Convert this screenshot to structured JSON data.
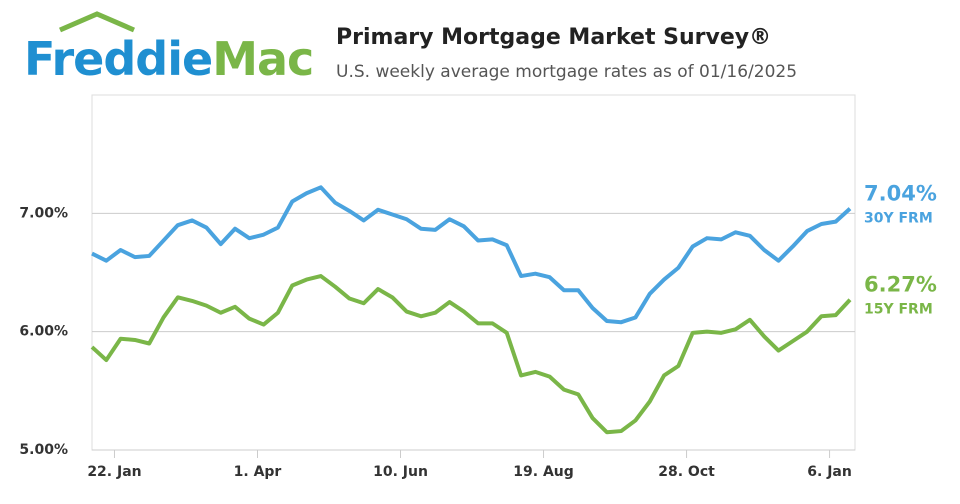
{
  "chart_data": {
    "type": "line",
    "brand": [
      "Freddie",
      "Mac"
    ],
    "title": "Primary Mortgage Market Survey®",
    "subtitle": "U.S. weekly average mortgage rates as of 01/16/2025",
    "categories": [
      null,
      null,
      "22. Jan",
      null,
      null,
      null,
      null,
      null,
      null,
      null,
      null,
      null,
      "1. Apr",
      null,
      null,
      null,
      null,
      null,
      null,
      null,
      null,
      null,
      "10. Jun",
      null,
      null,
      null,
      null,
      null,
      null,
      null,
      null,
      null,
      "19. Aug",
      null,
      null,
      null,
      null,
      null,
      null,
      null,
      null,
      null,
      "28. Oct",
      null,
      null,
      null,
      null,
      null,
      null,
      null,
      null,
      null,
      "6. Jan",
      null
    ],
    "series": [
      {
        "name": "30Y FRM",
        "color": "#4aa3df",
        "values": [
          6.66,
          6.6,
          6.69,
          6.63,
          6.64,
          6.77,
          6.9,
          6.94,
          6.88,
          6.74,
          6.87,
          6.79,
          6.82,
          6.88,
          7.1,
          7.17,
          7.22,
          7.09,
          7.02,
          6.94,
          7.03,
          6.99,
          6.95,
          6.87,
          6.86,
          6.95,
          6.89,
          6.77,
          6.78,
          6.73,
          6.47,
          6.49,
          6.46,
          6.35,
          6.35,
          6.2,
          6.09,
          6.08,
          6.12,
          6.32,
          6.44,
          6.54,
          6.72,
          6.79,
          6.78,
          6.84,
          6.81,
          6.69,
          6.6,
          6.72,
          6.85,
          6.91,
          6.93,
          7.04
        ],
        "value_labels": [
          null,
          null,
          null,
          null,
          null,
          null,
          null,
          null,
          null,
          null,
          null,
          null,
          null,
          null,
          null,
          null,
          null,
          null,
          null,
          null,
          null,
          null,
          null,
          null,
          null,
          null,
          null,
          null,
          null,
          null,
          null,
          null,
          null,
          null,
          null,
          null,
          null,
          null,
          null,
          null,
          null,
          null,
          null,
          null,
          null,
          null,
          null,
          null,
          null,
          null,
          null,
          null,
          null,
          "7.04%"
        ]
      },
      {
        "name": "15Y FRM",
        "color": "#7ab648",
        "values": [
          5.87,
          5.76,
          5.94,
          5.93,
          5.9,
          6.12,
          6.29,
          6.26,
          6.22,
          6.16,
          6.21,
          6.11,
          6.06,
          6.16,
          6.39,
          6.44,
          6.47,
          6.38,
          6.28,
          6.24,
          6.36,
          6.29,
          6.17,
          6.13,
          6.16,
          6.25,
          6.17,
          6.07,
          6.07,
          5.99,
          5.63,
          5.66,
          5.62,
          5.51,
          5.47,
          5.27,
          5.15,
          5.16,
          5.25,
          5.41,
          5.63,
          5.71,
          5.99,
          6.0,
          5.99,
          6.02,
          6.1,
          5.96,
          5.84,
          5.92,
          6.0,
          6.13,
          6.14,
          6.27
        ],
        "value_labels": [
          null,
          null,
          null,
          null,
          null,
          null,
          null,
          null,
          null,
          null,
          null,
          null,
          null,
          null,
          null,
          null,
          null,
          null,
          null,
          null,
          null,
          null,
          null,
          null,
          null,
          null,
          null,
          null,
          null,
          null,
          null,
          null,
          null,
          null,
          null,
          null,
          null,
          null,
          null,
          null,
          null,
          null,
          null,
          null,
          null,
          null,
          null,
          null,
          null,
          null,
          null,
          null,
          null,
          "6.27%"
        ]
      }
    ],
    "ylim": [
      5,
      8
    ],
    "yticks": [
      {
        "value": 5,
        "label": "5.00%"
      },
      {
        "value": 6,
        "label": "6.00%"
      },
      {
        "value": 7,
        "label": "7.00%"
      }
    ],
    "grid": true
  }
}
